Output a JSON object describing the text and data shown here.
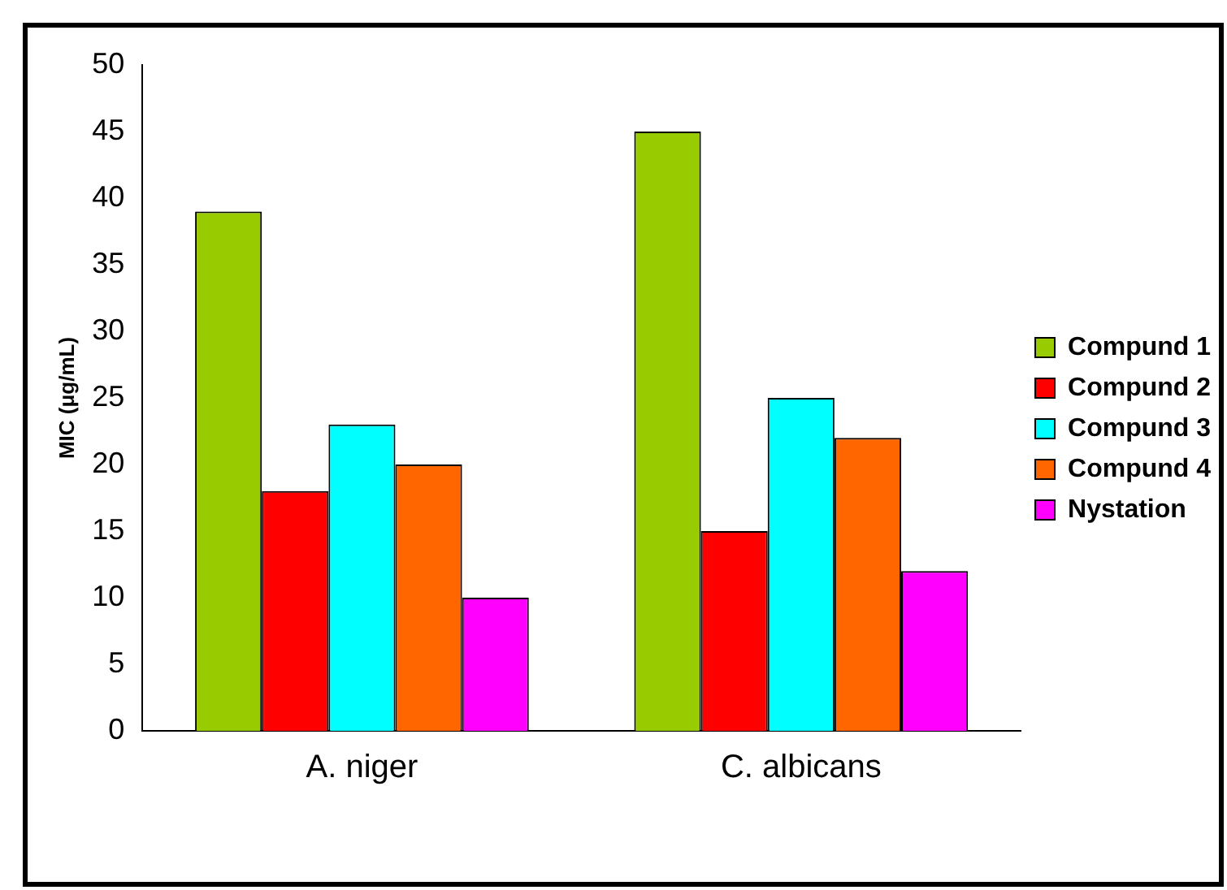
{
  "chart_data": {
    "type": "bar",
    "ylabel": "MIC (μg/mL)",
    "categories": [
      "A. niger",
      "C. albicans"
    ],
    "series": [
      {
        "name": "Compund 1",
        "color": "#99cc00",
        "values": [
          39,
          45
        ]
      },
      {
        "name": "Compund 2",
        "color": "#ff0000",
        "values": [
          18,
          15
        ]
      },
      {
        "name": "Compund 3",
        "color": "#00ffff",
        "values": [
          23,
          25
        ]
      },
      {
        "name": "Compund 4",
        "color": "#ff6600",
        "values": [
          20,
          22
        ]
      },
      {
        "name": "Nystation",
        "color": "#ff00ff",
        "values": [
          10,
          12
        ]
      }
    ],
    "ylim": [
      0,
      50
    ],
    "yticks": [
      0,
      5,
      10,
      15,
      20,
      25,
      30,
      35,
      40,
      45,
      50
    ],
    "grid": false,
    "legend": "right"
  }
}
